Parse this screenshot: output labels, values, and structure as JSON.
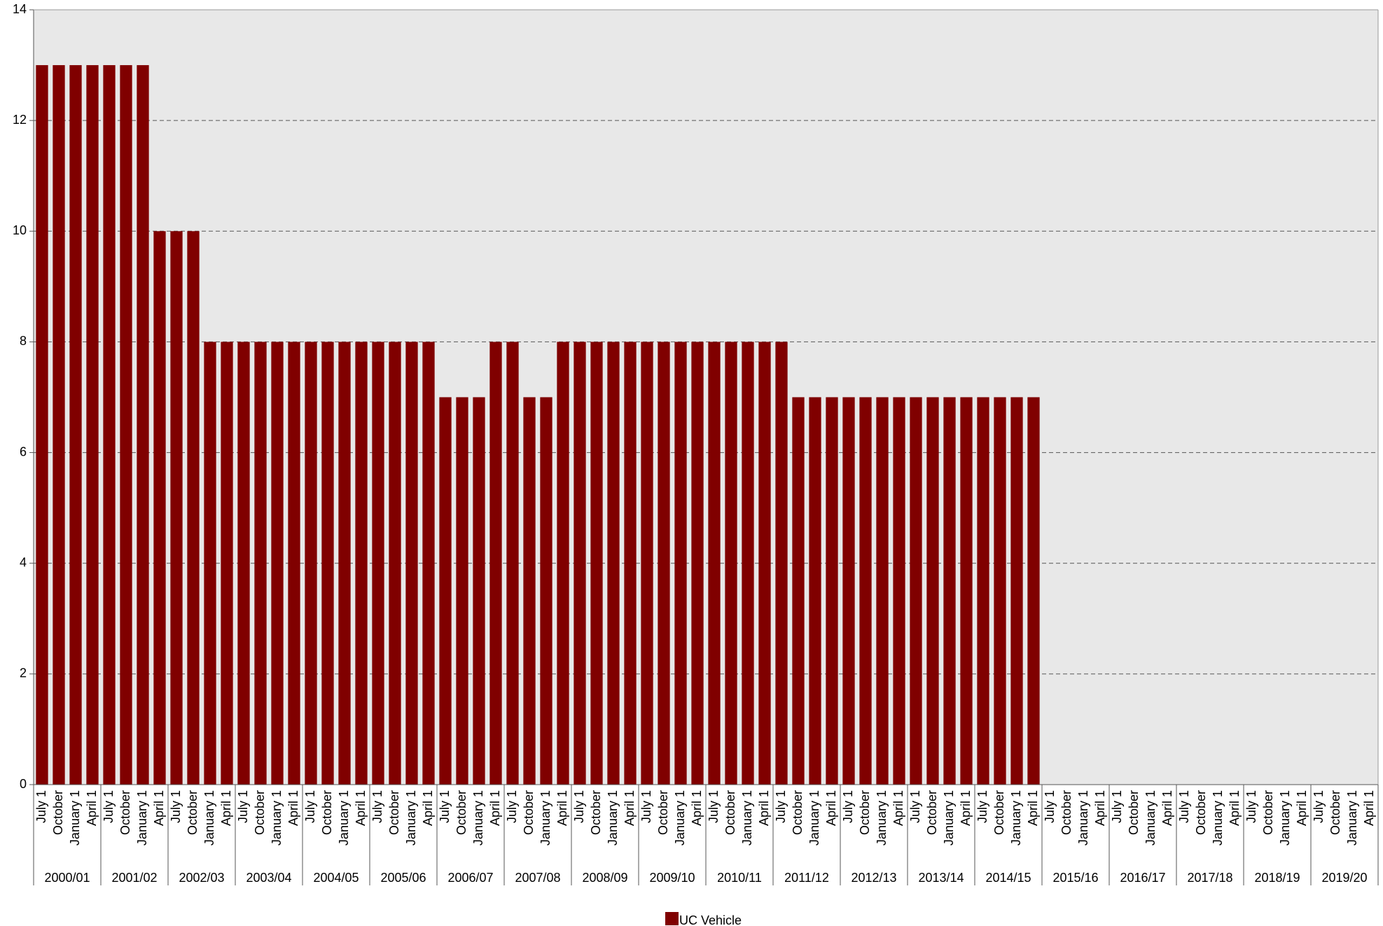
{
  "chart_data": {
    "type": "bar",
    "categories": [
      "July 1",
      "October",
      "January 1",
      "April 1",
      "July 1",
      "October",
      "January 1",
      "April 1",
      "July 1",
      "October",
      "January 1",
      "April 1",
      "July 1",
      "October",
      "January 1",
      "April 1",
      "July 1",
      "October",
      "January 1",
      "April 1",
      "July 1",
      "October",
      "January 1",
      "April 1",
      "July 1",
      "October",
      "January 1",
      "April 1",
      "July 1",
      "October",
      "January 1",
      "April 1",
      "July 1",
      "October",
      "January 1",
      "April 1",
      "July 1",
      "October",
      "January 1",
      "April 1",
      "July 1",
      "October",
      "January 1",
      "April 1",
      "July 1",
      "October",
      "January 1",
      "April 1",
      "July 1",
      "October",
      "January 1",
      "April 1",
      "July 1",
      "October",
      "January 1",
      "April 1",
      "July 1",
      "October",
      "January 1",
      "April 1",
      "July 1",
      "October",
      "January 1",
      "April 1",
      "July 1",
      "October",
      "January 1",
      "April 1",
      "July 1",
      "October",
      "January 1",
      "April 1",
      "July 1",
      "October",
      "January 1",
      "April 1",
      "July 1",
      "October",
      "January 1",
      "April 1"
    ],
    "groups": [
      "2000/01",
      "2001/02",
      "2002/03",
      "2003/04",
      "2004/05",
      "2005/06",
      "2006/07",
      "2007/08",
      "2008/09",
      "2009/10",
      "2010/11",
      "2011/12",
      "2012/13",
      "2013/14",
      "2014/15",
      "2015/16",
      "2016/17",
      "2017/18",
      "2018/19",
      "2019/20"
    ],
    "series": [
      {
        "name": "UC Vehicle",
        "color": "#800000",
        "values": [
          13,
          13,
          13,
          13,
          13,
          13,
          13,
          10,
          10,
          10,
          8,
          8,
          8,
          8,
          8,
          8,
          8,
          8,
          8,
          8,
          8,
          8,
          8,
          8,
          7,
          7,
          7,
          8,
          8,
          7,
          7,
          8,
          8,
          8,
          8,
          8,
          8,
          8,
          8,
          8,
          8,
          8,
          8,
          8,
          8,
          7,
          7,
          7,
          7,
          7,
          7,
          7,
          7,
          7,
          7,
          7,
          7,
          7,
          7,
          7,
          null,
          null,
          null,
          null,
          null,
          null,
          null,
          null,
          null,
          null,
          null,
          null,
          null,
          null,
          null,
          null,
          null,
          null,
          null,
          null
        ]
      }
    ],
    "ylim": [
      0,
      14
    ],
    "yticks": [
      0,
      2,
      4,
      6,
      8,
      10,
      12,
      14
    ],
    "grid": true
  }
}
